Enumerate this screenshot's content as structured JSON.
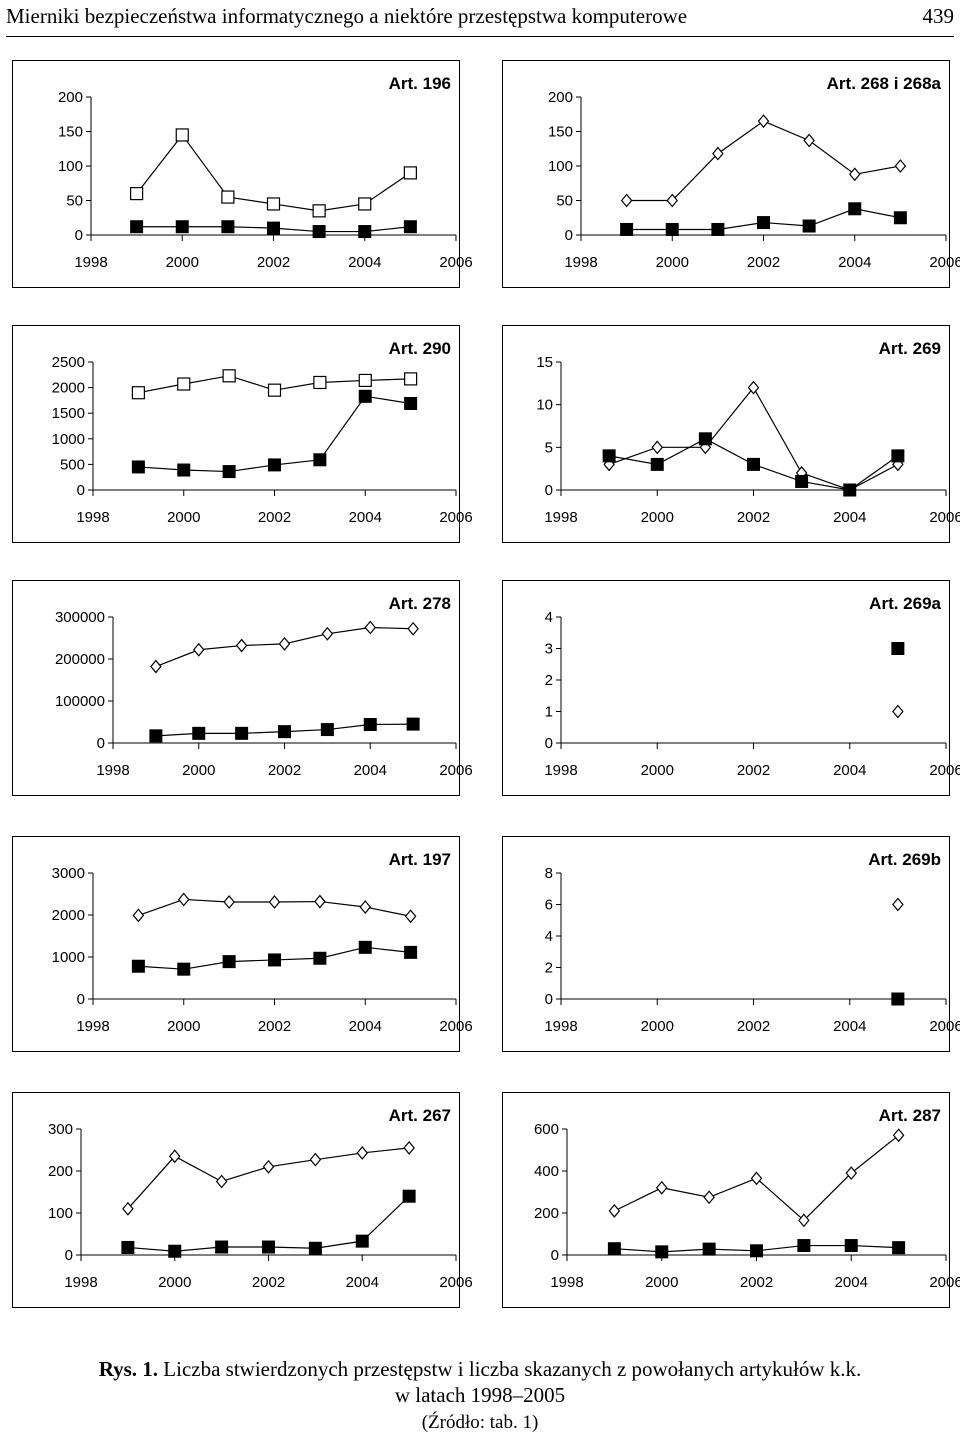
{
  "header": {
    "title": "Mierniki bezpieczeństwa informatycznego a niektóre przestępstwa komputerowe",
    "page": "439"
  },
  "caption": {
    "label": "Rys. 1.",
    "text": "Liczba stwierdzonych przestępstw i liczba skazanych z powołanych artykułów k.k.",
    "line2": "w latach 1998–2005",
    "source": "(Źródło: tab. 1)"
  },
  "chart_data": [
    {
      "type": "line",
      "title": "Art. 196",
      "x": [
        1999,
        2000,
        2001,
        2002,
        2003,
        2004,
        2005
      ],
      "yticks": [
        "0",
        "50",
        "100",
        "150",
        "200"
      ],
      "ylim": [
        0,
        200
      ],
      "xticks": [
        "1998",
        "2000",
        "2002",
        "2004",
        "2006"
      ],
      "series": [
        {
          "marker": "open-square",
          "values": [
            60,
            145,
            55,
            45,
            35,
            45,
            90
          ]
        },
        {
          "marker": "filled-square",
          "values": [
            12,
            12,
            12,
            10,
            5,
            5,
            12
          ]
        }
      ]
    },
    {
      "type": "line",
      "title": "Art. 268 i 268a",
      "x": [
        1999,
        2000,
        2001,
        2002,
        2003,
        2004,
        2005
      ],
      "yticks": [
        "0",
        "50",
        "100",
        "150",
        "200"
      ],
      "ylim": [
        0,
        200
      ],
      "xticks": [
        "1998",
        "2000",
        "2002",
        "2004",
        "2006"
      ],
      "series": [
        {
          "marker": "open-diamond",
          "values": [
            50,
            50,
            118,
            165,
            137,
            88,
            100
          ]
        },
        {
          "marker": "filled-square",
          "values": [
            8,
            8,
            8,
            18,
            13,
            38,
            25
          ]
        }
      ]
    },
    {
      "type": "line",
      "title": "Art. 290",
      "x": [
        1999,
        2000,
        2001,
        2002,
        2003,
        2004,
        2005
      ],
      "yticks": [
        "0",
        "500",
        "1000",
        "1500",
        "2000",
        "2500"
      ],
      "ylim": [
        0,
        2500
      ],
      "xticks": [
        "1998",
        "2000",
        "2002",
        "2004",
        "2006"
      ],
      "series": [
        {
          "marker": "open-square",
          "values": [
            1900,
            2070,
            2230,
            1950,
            2100,
            2140,
            2170
          ]
        },
        {
          "marker": "filled-square",
          "values": [
            450,
            390,
            360,
            490,
            590,
            1830,
            1690
          ]
        }
      ]
    },
    {
      "type": "line",
      "title": "Art. 269",
      "x": [
        1999,
        2000,
        2001,
        2002,
        2003,
        2004,
        2005
      ],
      "yticks": [
        "0",
        "5",
        "10",
        "15"
      ],
      "ylim": [
        0,
        15
      ],
      "xticks": [
        "1998",
        "2000",
        "2002",
        "2004",
        "2006"
      ],
      "series": [
        {
          "marker": "open-diamond",
          "values": [
            3,
            5,
            5,
            12,
            2,
            0,
            3
          ]
        },
        {
          "marker": "filled-square",
          "values": [
            4,
            3,
            6,
            3,
            1,
            0,
            4
          ]
        }
      ]
    },
    {
      "type": "line",
      "title": "Art. 278",
      "x": [
        1999,
        2000,
        2001,
        2002,
        2003,
        2004,
        2005
      ],
      "yticks": [
        "0",
        "100000",
        "200000",
        "300000"
      ],
      "ylim": [
        0,
        300000
      ],
      "xticks": [
        "1998",
        "2000",
        "2002",
        "2004",
        "2006"
      ],
      "series": [
        {
          "marker": "open-diamond",
          "values": [
            182000,
            222000,
            232000,
            236000,
            260000,
            275000,
            272000
          ]
        },
        {
          "marker": "filled-square",
          "values": [
            17000,
            23000,
            23000,
            27000,
            32000,
            44000,
            45000
          ]
        }
      ]
    },
    {
      "type": "line",
      "title": "Art. 269a",
      "x": [
        2005
      ],
      "yticks": [
        "0",
        "1",
        "2",
        "3",
        "4"
      ],
      "ylim": [
        0,
        4
      ],
      "xticks": [
        "1998",
        "2000",
        "2002",
        "2004",
        "2006"
      ],
      "series": [
        {
          "marker": "open-diamond",
          "values": [
            1
          ]
        },
        {
          "marker": "filled-square",
          "values": [
            3
          ]
        }
      ]
    },
    {
      "type": "line",
      "title": "Art. 197",
      "x": [
        1999,
        2000,
        2001,
        2002,
        2003,
        2004,
        2005
      ],
      "yticks": [
        "0",
        "1000",
        "2000",
        "3000"
      ],
      "ylim": [
        0,
        3000
      ],
      "xticks": [
        "1998",
        "2000",
        "2002",
        "2004",
        "2006"
      ],
      "series": [
        {
          "marker": "open-diamond",
          "values": [
            1990,
            2370,
            2310,
            2310,
            2320,
            2190,
            1970
          ]
        },
        {
          "marker": "filled-square",
          "values": [
            780,
            710,
            890,
            930,
            970,
            1230,
            1110
          ]
        }
      ]
    },
    {
      "type": "line",
      "title": "Art. 269b",
      "x": [
        2005
      ],
      "yticks": [
        "0",
        "2",
        "4",
        "6",
        "8"
      ],
      "ylim": [
        0,
        8
      ],
      "xticks": [
        "1998",
        "2000",
        "2002",
        "2004",
        "2006"
      ],
      "series": [
        {
          "marker": "open-diamond",
          "values": [
            6
          ]
        },
        {
          "marker": "filled-square",
          "values": [
            0
          ]
        }
      ]
    },
    {
      "type": "line",
      "title": "Art. 267",
      "x": [
        1999,
        2000,
        2001,
        2002,
        2003,
        2004,
        2005
      ],
      "yticks": [
        "0",
        "100",
        "200",
        "300"
      ],
      "ylim": [
        0,
        300
      ],
      "xticks": [
        "1998",
        "2000",
        "2002",
        "2004",
        "2006"
      ],
      "series": [
        {
          "marker": "open-diamond",
          "values": [
            110,
            235,
            175,
            210,
            227,
            243,
            255
          ]
        },
        {
          "marker": "filled-square",
          "values": [
            18,
            9,
            19,
            19,
            16,
            33,
            140
          ]
        }
      ]
    },
    {
      "type": "line",
      "title": "Art. 287",
      "x": [
        1999,
        2000,
        2001,
        2002,
        2003,
        2004,
        2005
      ],
      "yticks": [
        "0",
        "200",
        "400",
        "600"
      ],
      "ylim": [
        0,
        600
      ],
      "xticks": [
        "1998",
        "2000",
        "2002",
        "2004",
        "2006"
      ],
      "series": [
        {
          "marker": "open-diamond",
          "values": [
            210,
            320,
            275,
            365,
            165,
            390,
            570
          ]
        },
        {
          "marker": "filled-square",
          "values": [
            30,
            15,
            28,
            20,
            45,
            45,
            35
          ]
        }
      ]
    }
  ]
}
